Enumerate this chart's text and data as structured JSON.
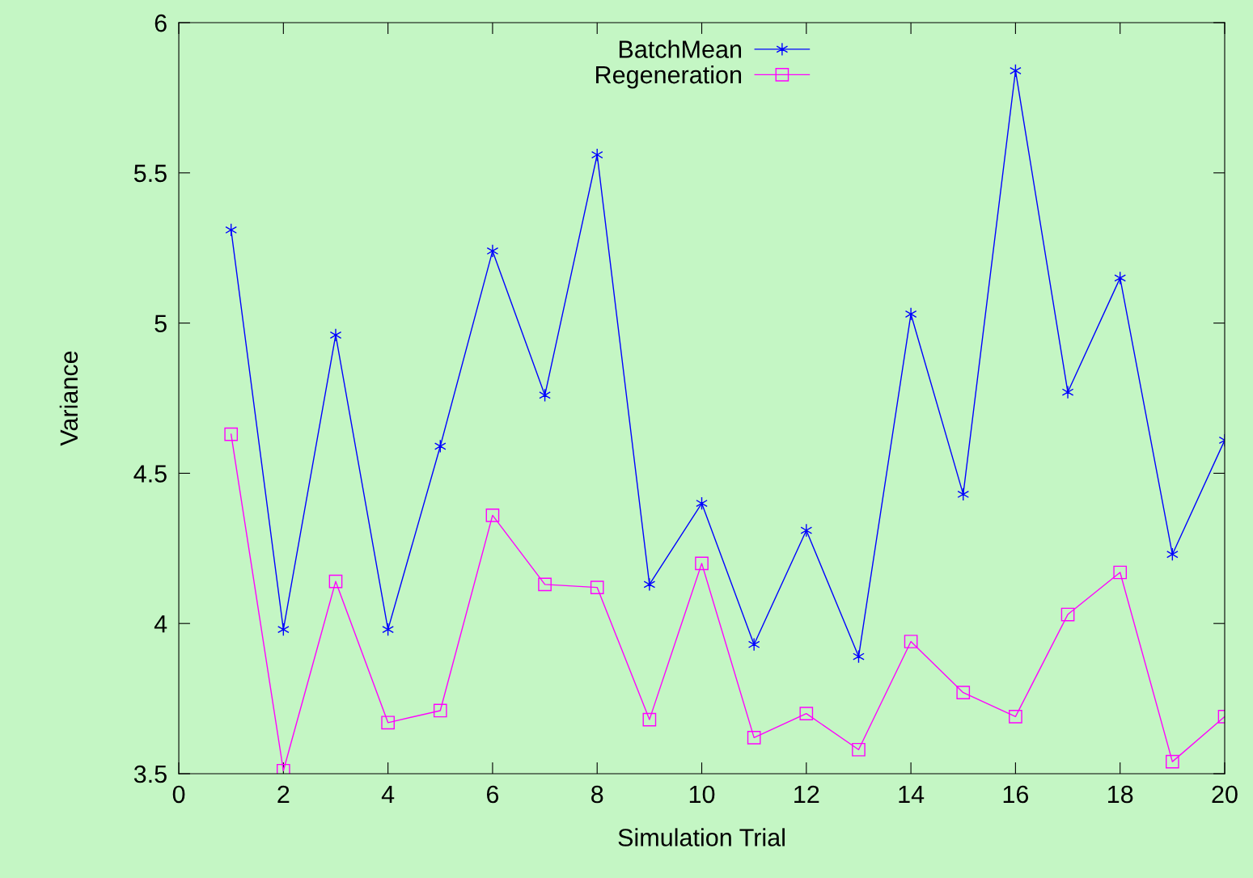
{
  "chart_data": {
    "type": "line",
    "xlabel": "Simulation Trial",
    "ylabel": "Variance",
    "x": [
      1,
      2,
      3,
      4,
      5,
      6,
      7,
      8,
      9,
      10,
      11,
      12,
      13,
      14,
      15,
      16,
      17,
      18,
      19,
      20
    ],
    "xlim": [
      0,
      20
    ],
    "xticks": [
      0,
      2,
      4,
      6,
      8,
      10,
      12,
      14,
      16,
      18,
      20
    ],
    "ylim": [
      3.5,
      6
    ],
    "yticks": [
      3.5,
      4,
      4.5,
      5,
      5.5,
      6
    ],
    "grid": false,
    "legend": "top",
    "line_style": "solid",
    "series": [
      {
        "name": "BatchMean",
        "color": "#0000ff",
        "marker": "cross",
        "values": [
          5.31,
          3.98,
          4.96,
          3.98,
          4.59,
          5.24,
          4.76,
          5.56,
          4.13,
          4.4,
          3.93,
          4.31,
          3.89,
          5.03,
          4.43,
          5.84,
          4.77,
          5.15,
          4.23,
          4.61
        ]
      },
      {
        "name": "Regeneration",
        "color": "#ff00ff",
        "marker": "square",
        "values": [
          4.63,
          3.51,
          4.14,
          3.67,
          3.71,
          4.36,
          4.13,
          4.12,
          3.68,
          4.2,
          3.62,
          3.7,
          3.58,
          3.94,
          3.77,
          3.69,
          4.03,
          4.17,
          3.54,
          3.69
        ]
      }
    ]
  }
}
